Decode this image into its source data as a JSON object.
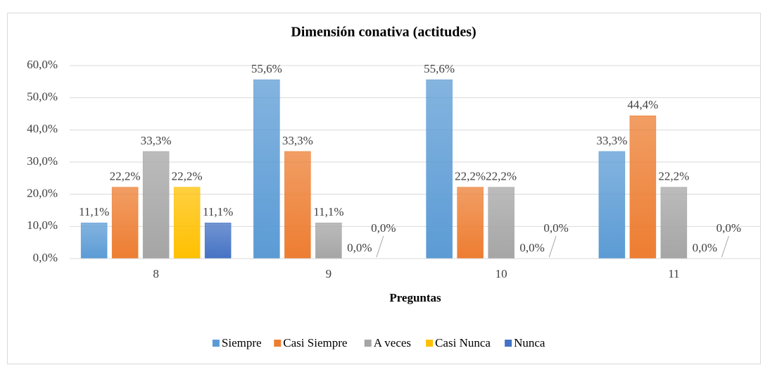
{
  "chart_data": {
    "type": "bar",
    "title": "Dimensión conativa (actitudes)",
    "x_label": "Preguntas",
    "categories": [
      "8",
      "9",
      "10",
      "11"
    ],
    "series": [
      {
        "name": "Siempre",
        "color": "#5b9bd5",
        "values": [
          11.1,
          55.6,
          55.6,
          33.3
        ],
        "value_labels": [
          "11,1%",
          "55,6%",
          "55,6%",
          "33,3%"
        ]
      },
      {
        "name": "Casi Siempre",
        "color": "#ed7d31",
        "values": [
          22.2,
          33.3,
          22.2,
          44.4
        ],
        "value_labels": [
          "22,2%",
          "33,3%",
          "22,2%",
          "44,4%"
        ]
      },
      {
        "name": "A veces",
        "color": "#a5a5a5",
        "values": [
          33.3,
          11.1,
          22.2,
          22.2
        ],
        "value_labels": [
          "33,3%",
          "11,1%",
          "22,2%",
          "22,2%"
        ]
      },
      {
        "name": "Casi Nunca",
        "color": "#ffc000",
        "values": [
          22.2,
          0,
          0,
          0
        ],
        "value_labels": [
          "22,2%",
          "0,0%",
          "0,0%",
          "0,0%"
        ]
      },
      {
        "name": "Nunca",
        "color": "#4472c4",
        "values": [
          11.1,
          0,
          0,
          0
        ],
        "value_labels": [
          "11,1%",
          "0,0%",
          "0,0%",
          "0,0%"
        ]
      }
    ],
    "ylim": [
      0,
      60
    ],
    "yticks": [
      {
        "value": 0,
        "label": "0,0%"
      },
      {
        "value": 10,
        "label": "10,0%"
      },
      {
        "value": 20,
        "label": "20,0%"
      },
      {
        "value": 30,
        "label": "30,0%"
      },
      {
        "value": 40,
        "label": "40,0%"
      },
      {
        "value": 50,
        "label": "50,0%"
      },
      {
        "value": 60,
        "label": "60,0%"
      }
    ],
    "grid": true,
    "legend": "bottom"
  }
}
